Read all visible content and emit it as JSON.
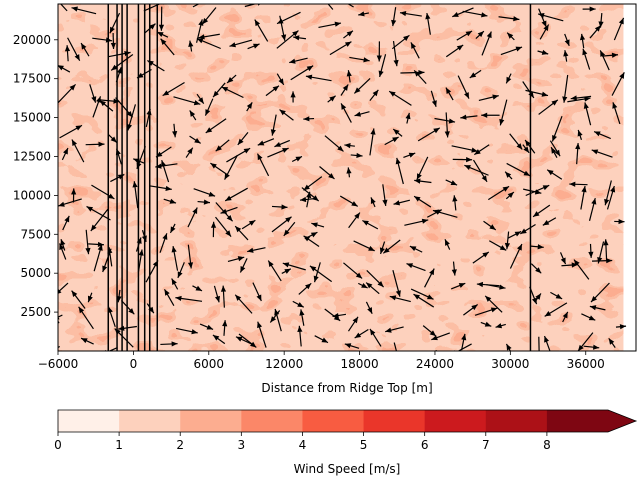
{
  "chart_data": [
    {
      "type": "contour+quiver",
      "title": "",
      "xlabel": "Distance from Ridge Top [m]",
      "ylabel": "",
      "xlim": [
        -6000,
        40000
      ],
      "ylim": [
        0,
        22300
      ],
      "xticks": [
        -6000,
        0,
        6000,
        12000,
        18000,
        24000,
        30000,
        36000
      ],
      "yticks": [
        2500,
        5000,
        7500,
        10000,
        12500,
        15000,
        17500,
        20000
      ],
      "field_data_extent_x": [
        -6000,
        39000
      ],
      "dominant_speed_range": [
        0,
        3
      ],
      "vertical_lines_x": [
        -2000,
        -1300,
        -900,
        -500,
        400,
        900,
        1300,
        1900,
        31600
      ],
      "arrows": "random direction wind vectors on a jittered grid",
      "grid": false
    },
    {
      "type": "colorbar",
      "label": "Wind Speed [m/s]",
      "levels": [
        0,
        1,
        2,
        3,
        4,
        5,
        6,
        7,
        8
      ],
      "extend": "max",
      "colors": [
        "#fff0e8",
        "#fdd1bd",
        "#fcad90",
        "#fb8768",
        "#f85c41",
        "#ea362a",
        "#cc1a1e",
        "#ac1117",
        "#7e0612"
      ]
    }
  ]
}
